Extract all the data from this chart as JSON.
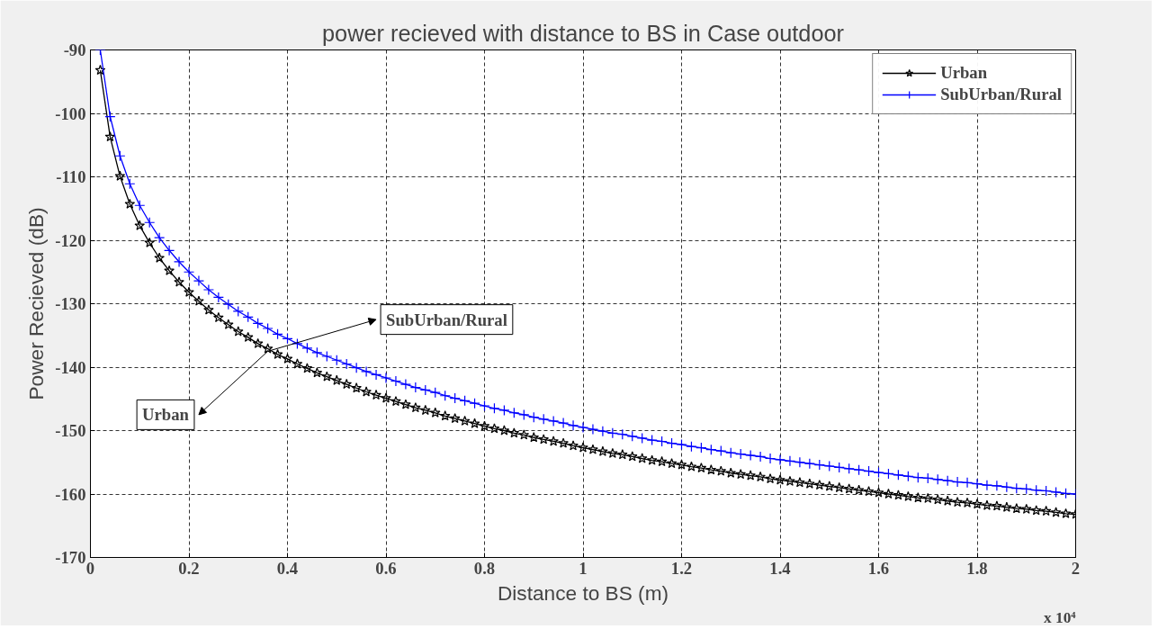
{
  "chart_data": {
    "type": "line",
    "title": "power recieved with distance to BS in Case outdoor",
    "xlabel": "Distance to BS (m)",
    "ylabel": "Power Recieved (dB)",
    "x": [
      0.02,
      0.04,
      0.06,
      0.08,
      0.1,
      0.12,
      0.14,
      0.16,
      0.18,
      0.2,
      0.22,
      0.24,
      0.26,
      0.28,
      0.3,
      0.32,
      0.34,
      0.36,
      0.38,
      0.4,
      0.42,
      0.44,
      0.46,
      0.48,
      0.5,
      0.52,
      0.54,
      0.56,
      0.58,
      0.6,
      0.62,
      0.64,
      0.66,
      0.68,
      0.7,
      0.72,
      0.74,
      0.76,
      0.78,
      0.8,
      0.82,
      0.84,
      0.86,
      0.88,
      0.9,
      0.92,
      0.94,
      0.96,
      0.98,
      1.0,
      1.02,
      1.04,
      1.06,
      1.08,
      1.1,
      1.12,
      1.14,
      1.16,
      1.18,
      1.2,
      1.22,
      1.24,
      1.26,
      1.28,
      1.3,
      1.32,
      1.34,
      1.36,
      1.38,
      1.4,
      1.42,
      1.44,
      1.46,
      1.48,
      1.5,
      1.52,
      1.54,
      1.56,
      1.58,
      1.6,
      1.62,
      1.64,
      1.66,
      1.68,
      1.7,
      1.72,
      1.74,
      1.76,
      1.78,
      1.8,
      1.82,
      1.84,
      1.86,
      1.88,
      1.9,
      1.92,
      1.94,
      1.96,
      1.98,
      2.0
    ],
    "series": [
      {
        "name": "Urban",
        "color": "#000000",
        "marker": "star",
        "values": [
          -93.2,
          -103.7,
          -109.9,
          -114.3,
          -117.7,
          -120.4,
          -122.8,
          -124.8,
          -126.6,
          -128.2,
          -129.6,
          -131.0,
          -132.2,
          -133.3,
          -134.4,
          -135.3,
          -136.3,
          -137.1,
          -138.0,
          -138.7,
          -139.5,
          -140.2,
          -140.9,
          -141.5,
          -142.1,
          -142.7,
          -143.3,
          -143.9,
          -144.4,
          -144.9,
          -145.4,
          -145.9,
          -146.4,
          -146.8,
          -147.2,
          -147.7,
          -148.1,
          -148.5,
          -148.9,
          -149.3,
          -149.7,
          -150.0,
          -150.4,
          -150.7,
          -151.1,
          -151.4,
          -151.7,
          -152.0,
          -152.4,
          -152.7,
          -153.0,
          -153.3,
          -153.6,
          -153.8,
          -154.1,
          -154.4,
          -154.7,
          -154.9,
          -155.2,
          -155.4,
          -155.7,
          -155.9,
          -156.2,
          -156.4,
          -156.7,
          -156.9,
          -157.1,
          -157.3,
          -157.6,
          -157.8,
          -158.0,
          -158.2,
          -158.4,
          -158.6,
          -158.8,
          -159.0,
          -159.2,
          -159.4,
          -159.6,
          -159.8,
          -160.0,
          -160.2,
          -160.4,
          -160.6,
          -160.7,
          -160.9,
          -161.1,
          -161.3,
          -161.4,
          -161.6,
          -161.8,
          -161.9,
          -162.1,
          -162.3,
          -162.4,
          -162.6,
          -162.7,
          -162.9,
          -163.1,
          -163.2
        ]
      },
      {
        "name": "SubUrban/Rural",
        "color": "#0000ff",
        "marker": "cross",
        "values": [
          -90.0,
          -100.5,
          -106.7,
          -111.1,
          -114.5,
          -117.2,
          -119.6,
          -121.6,
          -123.4,
          -125.0,
          -126.4,
          -127.8,
          -129.0,
          -130.1,
          -131.2,
          -132.1,
          -133.1,
          -133.9,
          -134.8,
          -135.5,
          -136.3,
          -137.0,
          -137.7,
          -138.3,
          -138.9,
          -139.5,
          -140.1,
          -140.7,
          -141.2,
          -141.7,
          -142.2,
          -142.7,
          -143.2,
          -143.6,
          -144.0,
          -144.5,
          -144.9,
          -145.3,
          -145.7,
          -146.1,
          -146.5,
          -146.8,
          -147.2,
          -147.5,
          -147.9,
          -148.2,
          -148.5,
          -148.8,
          -149.2,
          -149.5,
          -149.8,
          -150.1,
          -150.4,
          -150.6,
          -150.9,
          -151.2,
          -151.5,
          -151.7,
          -152.0,
          -152.2,
          -152.5,
          -152.7,
          -153.0,
          -153.2,
          -153.5,
          -153.7,
          -153.9,
          -154.1,
          -154.4,
          -154.6,
          -154.8,
          -155.0,
          -155.2,
          -155.4,
          -155.6,
          -155.8,
          -156.0,
          -156.2,
          -156.4,
          -156.6,
          -156.8,
          -157.0,
          -157.2,
          -157.4,
          -157.5,
          -157.7,
          -157.9,
          -158.1,
          -158.2,
          -158.4,
          -158.6,
          -158.7,
          -158.9,
          -159.1,
          -159.2,
          -159.4,
          -159.5,
          -159.7,
          -159.9,
          -160.0
        ]
      }
    ],
    "xlim": [
      0,
      2
    ],
    "xticks": [
      0,
      0.2,
      0.4,
      0.6,
      0.8,
      1,
      1.2,
      1.4,
      1.6,
      1.8,
      2
    ],
    "ylim": [
      -170,
      -90
    ],
    "yticks": [
      -170,
      -160,
      -150,
      -140,
      -130,
      -120,
      -110,
      -100,
      -90
    ],
    "annotations": [
      {
        "text": "SubUrban/Rural",
        "x": 0.36,
        "y": -137.5
      },
      {
        "text": "Urban",
        "x": 0.36,
        "y": -137.5
      },
      "x 10⁴"
    ],
    "grid": true,
    "legend": "top right",
    "line_style": "solid"
  }
}
